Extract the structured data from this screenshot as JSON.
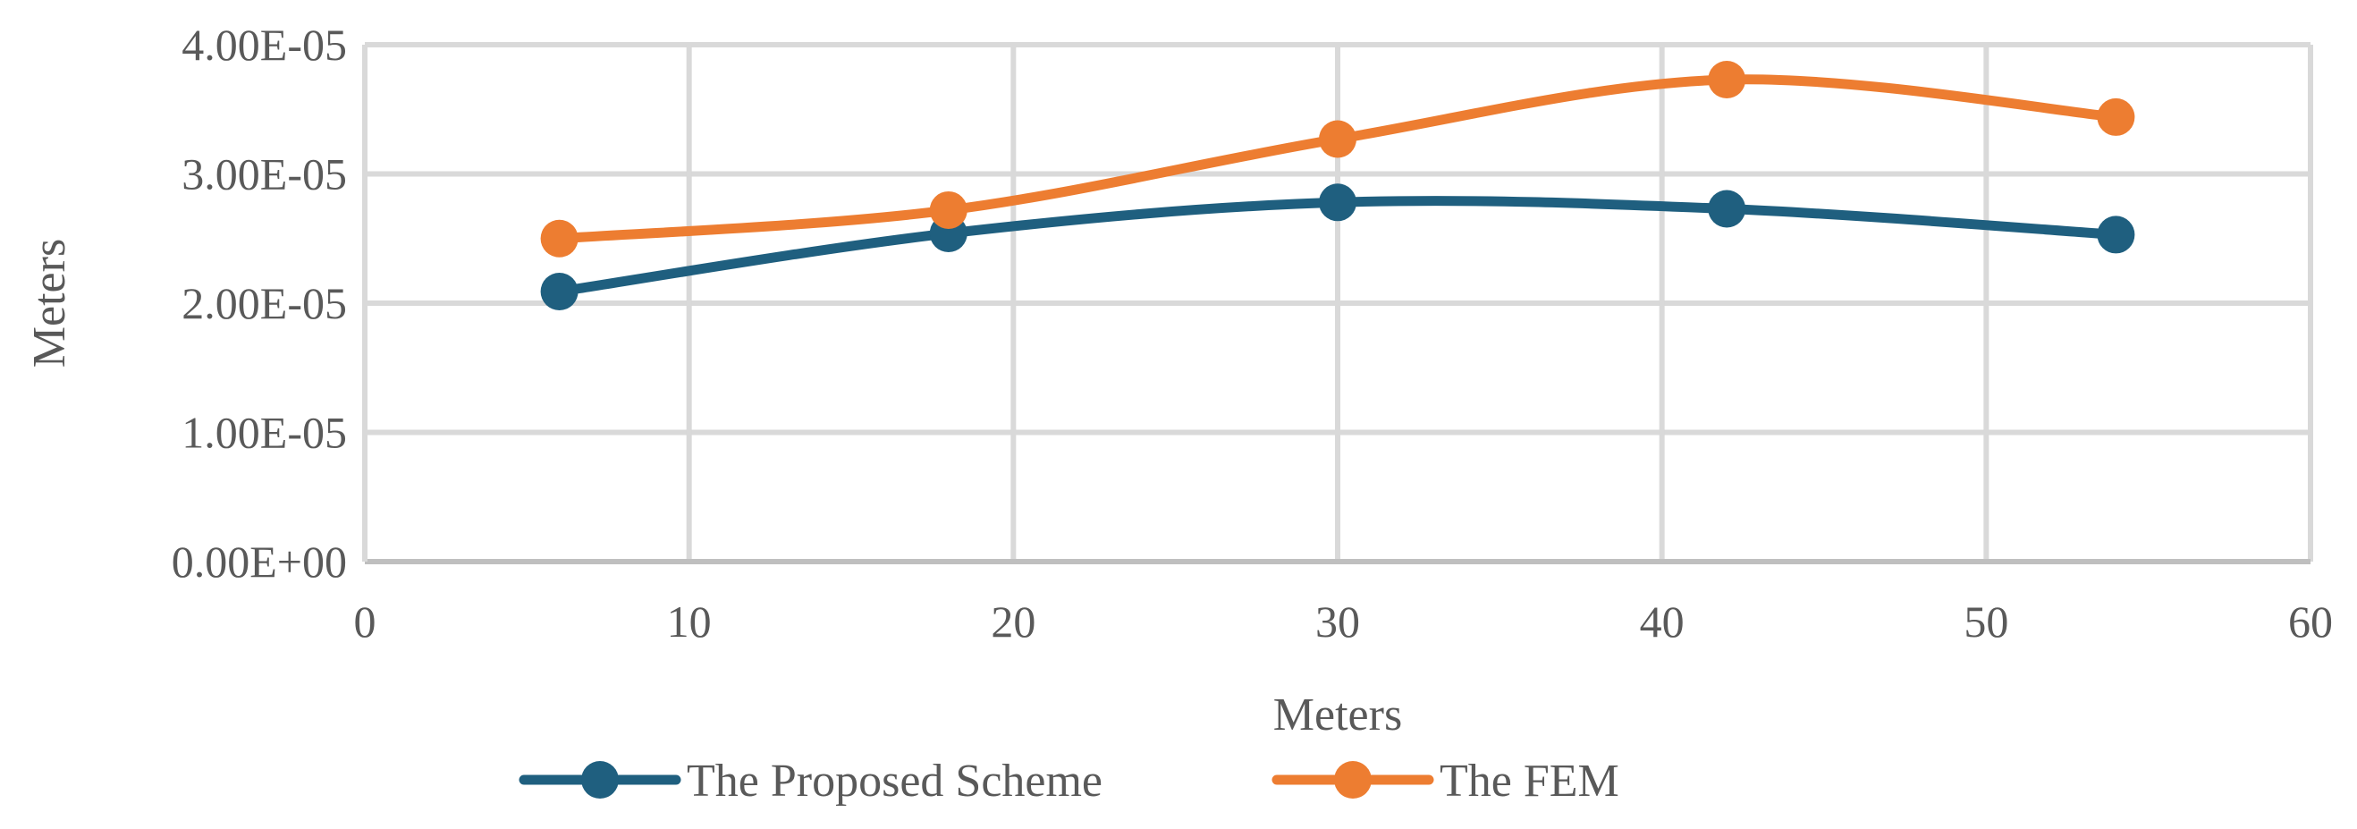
{
  "chart_data": {
    "type": "line",
    "title": "",
    "xlabel": "Meters",
    "ylabel": "Meters",
    "xlim": [
      0,
      60
    ],
    "ylim": [
      0,
      4e-05
    ],
    "x_ticks": [
      0,
      10,
      20,
      30,
      40,
      50,
      60
    ],
    "x_tick_labels": [
      "0",
      "10",
      "20",
      "30",
      "40",
      "50",
      "60"
    ],
    "y_ticks": [
      0,
      1e-05,
      2e-05,
      3e-05,
      4e-05
    ],
    "y_tick_labels": [
      "0.00E+00",
      "1.00E-05",
      "2.00E-05",
      "3.00E-05",
      "4.00E-05"
    ],
    "grid": true,
    "smooth": true,
    "legend_position": "bottom",
    "series": [
      {
        "name": "The Proposed Scheme",
        "color": "#1f5f7f",
        "x": [
          6,
          18,
          30,
          42,
          54
        ],
        "y": [
          2.09e-05,
          2.54e-05,
          2.78e-05,
          2.73e-05,
          2.53e-05
        ]
      },
      {
        "name": "The FEM",
        "color": "#ed7d31",
        "x": [
          6,
          18,
          30,
          42,
          54
        ],
        "y": [
          2.5e-05,
          2.72e-05,
          3.27e-05,
          3.73e-05,
          3.44e-05
        ]
      }
    ]
  }
}
